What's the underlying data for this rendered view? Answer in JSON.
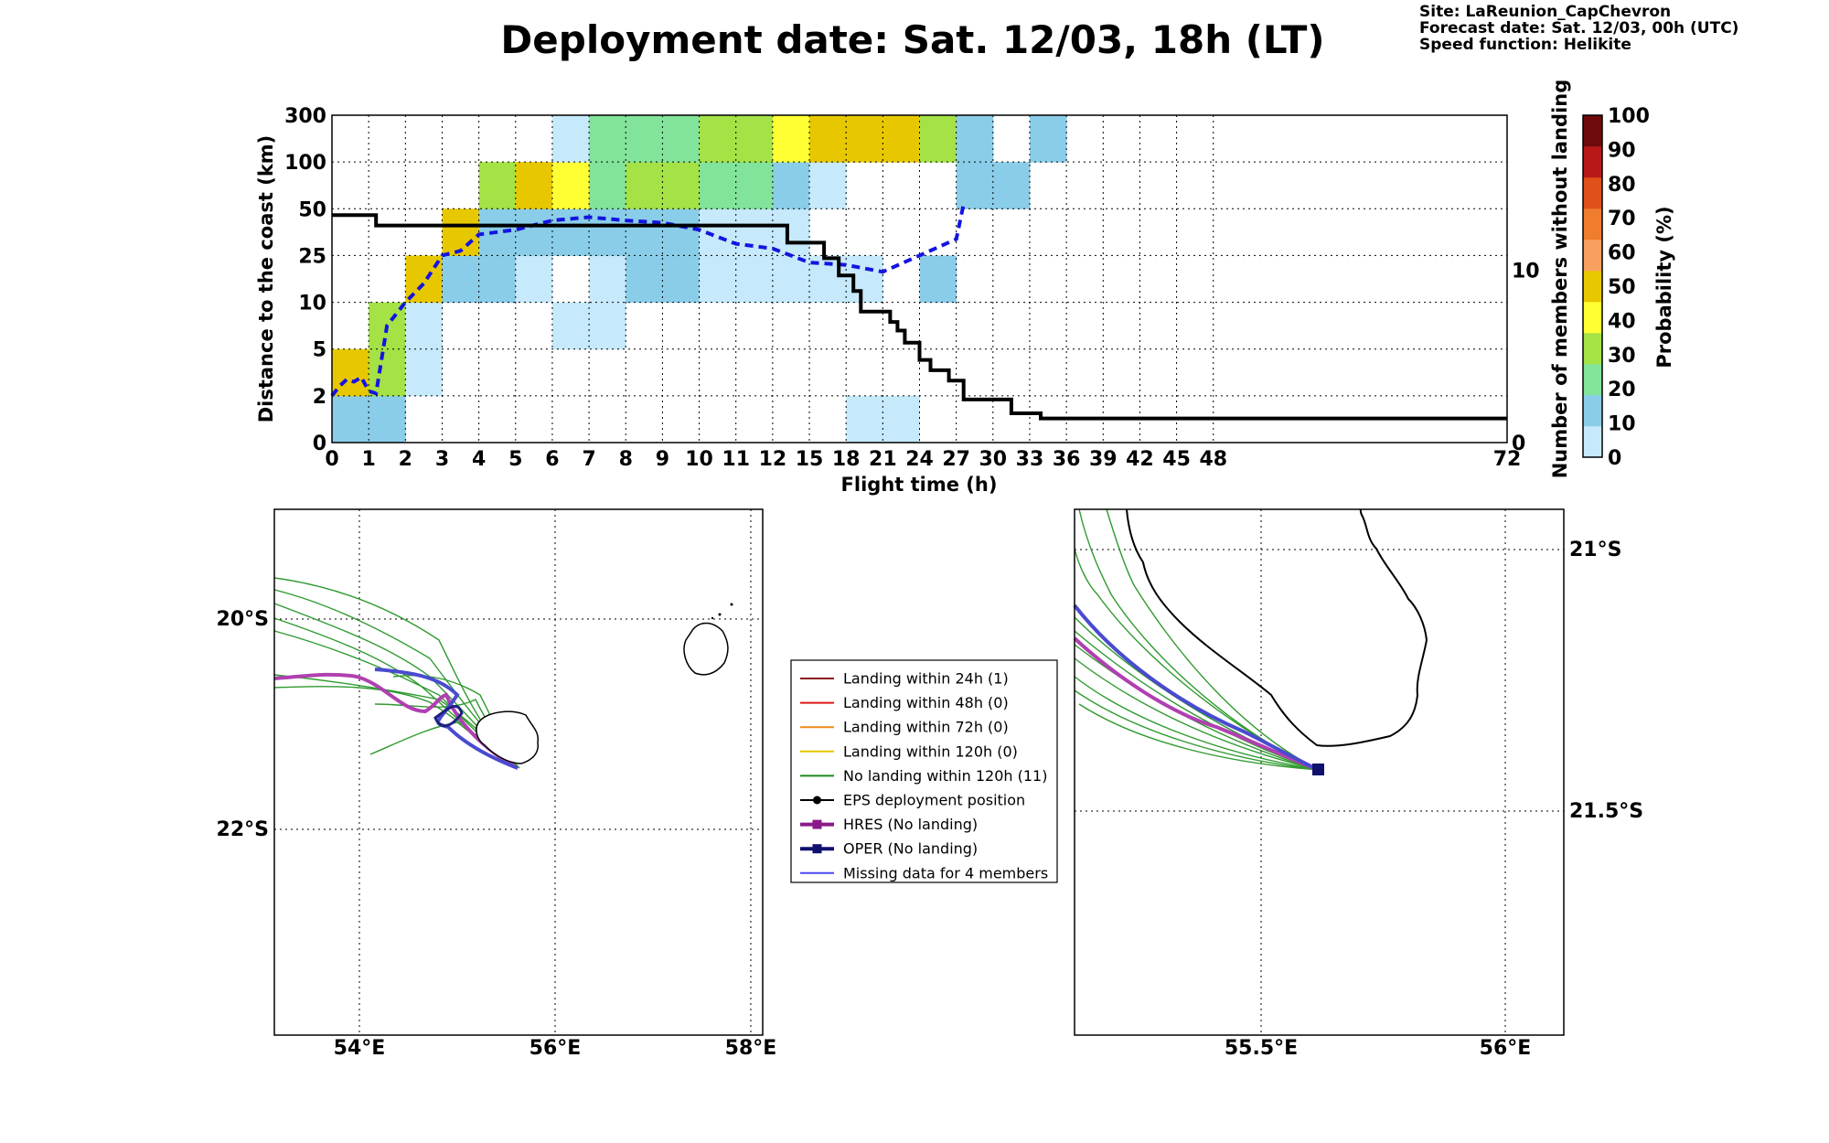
{
  "header": {
    "title": "Deployment date: Sat. 12/03, 18h (LT)",
    "site": "Site: LaReunion_CapChevron",
    "forecast_date": "Forecast date: Sat. 12/03, 00h (UTC)",
    "speed_function": "Speed function: Helikite"
  },
  "chart_data": [
    {
      "type": "heatmap",
      "xlabel": "Flight time (h)",
      "ylabel": "Distance to the coast (km)",
      "y2label": "Number of members without landing",
      "colorbar_label": "Probability (%)",
      "x_ticks": [
        "0",
        "1",
        "2",
        "3",
        "4",
        "5",
        "6",
        "7",
        "8",
        "9",
        "10",
        "11",
        "12",
        "15",
        "18",
        "21",
        "24",
        "27",
        "30",
        "33",
        "36",
        "39",
        "42",
        "45",
        "48",
        "72"
      ],
      "y_ticks": [
        "0",
        "2",
        "5",
        "10",
        "25",
        "50",
        "100",
        "300"
      ],
      "y2_ticks": [
        "0",
        "10"
      ],
      "y2_range": [
        0,
        19
      ],
      "colorbar_ticks": [
        "0",
        "10",
        "20",
        "30",
        "40",
        "50",
        "60",
        "70",
        "80",
        "90",
        "100"
      ],
      "colorbar_colors": [
        "#c6e9fb",
        "#8acde8",
        "#82e39a",
        "#a4e245",
        "#ffff33",
        "#e7c800",
        "#f8a060",
        "#f07c2e",
        "#e0501a",
        "#b81818",
        "#6e0a0a"
      ],
      "cells": [
        {
          "x": 0,
          "y": 0,
          "p": 10
        },
        {
          "x": 1,
          "y": 0,
          "p": 10
        },
        {
          "x": 0,
          "y": 1,
          "p": 50
        },
        {
          "x": 1,
          "y": 1,
          "p": 30
        },
        {
          "x": 2,
          "y": 1,
          "p": 0
        },
        {
          "x": 1,
          "y": 2,
          "p": 30
        },
        {
          "x": 2,
          "y": 2,
          "p": 0
        },
        {
          "x": 6,
          "y": 2,
          "p": 0
        },
        {
          "x": 7,
          "y": 2,
          "p": 0
        },
        {
          "x": 2,
          "y": 3,
          "p": 50
        },
        {
          "x": 3,
          "y": 3,
          "p": 10
        },
        {
          "x": 4,
          "y": 3,
          "p": 10
        },
        {
          "x": 5,
          "y": 3,
          "p": 0
        },
        {
          "x": 7,
          "y": 3,
          "p": 0
        },
        {
          "x": 8,
          "y": 3,
          "p": 10
        },
        {
          "x": 9,
          "y": 3,
          "p": 10
        },
        {
          "x": 10,
          "y": 3,
          "p": 0
        },
        {
          "x": 11,
          "y": 3,
          "p": 0
        },
        {
          "x": 12,
          "y": 3,
          "p": 0
        },
        {
          "x": 13,
          "y": 3,
          "p": 0
        },
        {
          "x": 14,
          "y": 3,
          "p": 0
        },
        {
          "x": 16,
          "y": 3,
          "p": 10
        },
        {
          "x": 3,
          "y": 4,
          "p": 50
        },
        {
          "x": 4,
          "y": 4,
          "p": 10
        },
        {
          "x": 5,
          "y": 4,
          "p": 10
        },
        {
          "x": 6,
          "y": 4,
          "p": 10
        },
        {
          "x": 7,
          "y": 4,
          "p": 10
        },
        {
          "x": 8,
          "y": 4,
          "p": 10
        },
        {
          "x": 9,
          "y": 4,
          "p": 10
        },
        {
          "x": 10,
          "y": 4,
          "p": 0
        },
        {
          "x": 11,
          "y": 4,
          "p": 0
        },
        {
          "x": 12,
          "y": 4,
          "p": 0
        },
        {
          "x": 4,
          "y": 5,
          "p": 30
        },
        {
          "x": 5,
          "y": 5,
          "p": 50
        },
        {
          "x": 6,
          "y": 5,
          "p": 40
        },
        {
          "x": 7,
          "y": 5,
          "p": 20
        },
        {
          "x": 8,
          "y": 5,
          "p": 30
        },
        {
          "x": 9,
          "y": 5,
          "p": 30
        },
        {
          "x": 10,
          "y": 5,
          "p": 20
        },
        {
          "x": 11,
          "y": 5,
          "p": 20
        },
        {
          "x": 12,
          "y": 5,
          "p": 10
        },
        {
          "x": 13,
          "y": 5,
          "p": 0
        },
        {
          "x": 17,
          "y": 5,
          "p": 10
        },
        {
          "x": 18,
          "y": 5,
          "p": 10
        },
        {
          "x": 6,
          "y": 6,
          "p": 0
        },
        {
          "x": 7,
          "y": 6,
          "p": 20
        },
        {
          "x": 8,
          "y": 6,
          "p": 20
        },
        {
          "x": 9,
          "y": 6,
          "p": 20
        },
        {
          "x": 10,
          "y": 6,
          "p": 30
        },
        {
          "x": 11,
          "y": 6,
          "p": 30
        },
        {
          "x": 12,
          "y": 6,
          "p": 40
        },
        {
          "x": 13,
          "y": 6,
          "p": 50
        },
        {
          "x": 14,
          "y": 6,
          "p": 50
        },
        {
          "x": 15,
          "y": 6,
          "p": 50
        },
        {
          "x": 16,
          "y": 6,
          "p": 30
        },
        {
          "x": 17,
          "y": 6,
          "p": 10
        },
        {
          "x": 19,
          "y": 6,
          "p": 10
        },
        {
          "x": 14,
          "y": 0,
          "p": 0
        },
        {
          "x": 15,
          "y": 0,
          "p": 0
        }
      ],
      "median_distance": {
        "x": [
          0,
          0.2,
          0.4,
          0.6,
          0.8,
          1.0,
          1.2,
          1.5,
          2.0,
          2.5,
          3.0,
          3.5,
          4.0,
          5.0,
          6.0,
          7.0,
          8.0,
          9.0,
          10.0,
          11.0,
          12.0,
          13.0,
          14.0,
          15.0,
          16.0,
          17.0,
          17.2
        ],
        "y": [
          1.0,
          1.2,
          1.35,
          1.3,
          1.4,
          1.1,
          1.05,
          2.5,
          3.0,
          3.4,
          4.0,
          4.1,
          4.45,
          4.55,
          4.75,
          4.82,
          4.75,
          4.7,
          4.55,
          4.25,
          4.15,
          3.85,
          3.8,
          3.65,
          4.0,
          4.35,
          5.1
        ]
      },
      "members_without_landing": {
        "x": [
          0,
          1.2,
          12.4,
          13.4,
          13.8,
          14.2,
          14.4,
          15.2,
          15.4,
          15.6,
          16.0,
          16.3,
          16.8,
          17.2,
          18.5,
          19.3,
          72
        ],
        "y": [
          13.2,
          12.6,
          11.6,
          10.7,
          9.7,
          8.8,
          7.6,
          7.0,
          6.5,
          5.8,
          4.8,
          4.2,
          3.6,
          2.5,
          1.7,
          1.4,
          1.4
        ]
      }
    }
  ],
  "map_left": {
    "lon_labels": [
      "54°E",
      "56°E",
      "58°E"
    ],
    "lat_labels": [
      "20°S",
      "22°S"
    ]
  },
  "map_right": {
    "lon_labels": [
      "55.5°E",
      "56°E"
    ],
    "lat_labels": [
      "21°S",
      "21.5°S"
    ]
  },
  "legend": {
    "items": [
      {
        "label": "Landing within 24h (1)",
        "color": "#8b1a1a",
        "marker": "none"
      },
      {
        "label": "Landing within 48h (0)",
        "color": "#e01818",
        "marker": "none"
      },
      {
        "label": "Landing within 72h (0)",
        "color": "#f08a18",
        "marker": "none"
      },
      {
        "label": "Landing within 120h (0)",
        "color": "#e6c600",
        "marker": "none"
      },
      {
        "label": "No landing within 120h (11)",
        "color": "#1e8a1e",
        "marker": "none"
      },
      {
        "label": "EPS deployment position",
        "color": "#000000",
        "marker": "dot"
      },
      {
        "label": "HRES (No landing)",
        "color": "#8a1a8a",
        "marker": "square-thick"
      },
      {
        "label": "OPER (No landing)",
        "color": "#10106e",
        "marker": "square-thick"
      },
      {
        "label": "Missing data for 4 members",
        "color": "#4a4af0",
        "marker": "none"
      }
    ]
  }
}
